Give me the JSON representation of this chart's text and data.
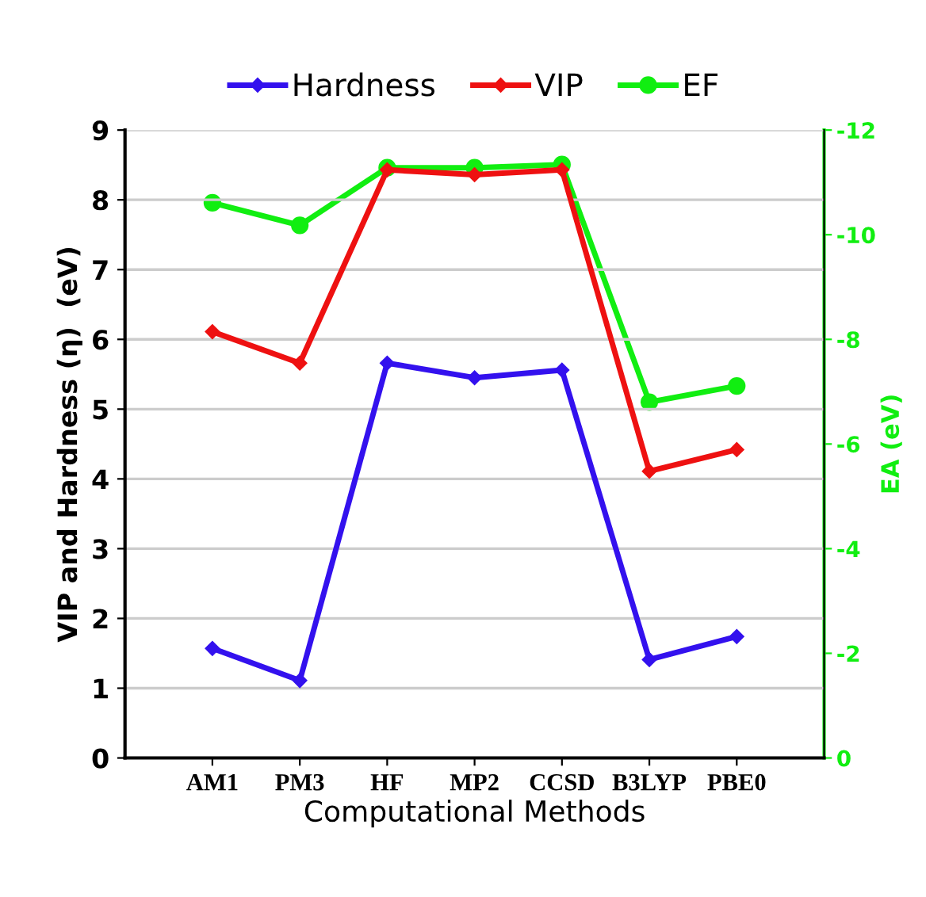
{
  "chart_data": {
    "type": "line",
    "categories": [
      "AM1",
      "PM3",
      "HF",
      "MP2",
      "CCSD",
      "B3LYP",
      "PBE0"
    ],
    "xlabel": "Computational Methods",
    "ylabel": "VIP and Hardness (η)  (eV)",
    "y2label": "EA (eV)",
    "series": [
      {
        "name": "Hardness",
        "color": "#3311ee",
        "marker": "diamond",
        "values": [
          1.57,
          1.11,
          5.66,
          5.45,
          5.56,
          1.41,
          1.74
        ]
      },
      {
        "name": "VIP",
        "color": "#ee1111",
        "marker": "diamond",
        "values": [
          6.11,
          5.66,
          8.43,
          8.36,
          8.43,
          4.11,
          4.42
        ]
      },
      {
        "name": "EF",
        "color": "#11ee11",
        "marker": "circle",
        "axis": "y2",
        "values": [
          -10.61,
          -10.18,
          -11.28,
          -11.28,
          -11.34,
          -6.8,
          -7.11
        ]
      }
    ],
    "ylim": [
      0,
      9
    ],
    "yticks": [
      0,
      1,
      2,
      3,
      4,
      5,
      6,
      7,
      8,
      9
    ],
    "y2lim": [
      0,
      -12
    ],
    "y2ticks": [
      0,
      -2,
      -4,
      -6,
      -8,
      -10,
      -12
    ],
    "grid": "y",
    "legend": "top",
    "line_style": "solid"
  }
}
